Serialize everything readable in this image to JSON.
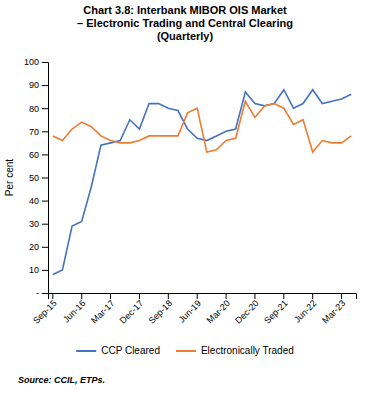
{
  "chart_data": {
    "type": "line",
    "title": "Chart 3.8: Interbank MIBOR OIS Market\n– Electronic Trading and Central Clearing\n(Quarterly)",
    "ylabel": "Per cent",
    "source": "Source: CCIL, ETPs.",
    "categories": [
      "Sep-15",
      null,
      null,
      "Jun-16",
      null,
      null,
      "Mar-17",
      null,
      null,
      "Dec-17",
      null,
      null,
      "Sep-18",
      null,
      null,
      "Jun-19",
      null,
      null,
      "Mar-20",
      null,
      null,
      "Dec-20",
      null,
      null,
      "Sep-21",
      null,
      null,
      "Jun-22",
      null,
      null,
      "Mar-23",
      null
    ],
    "series": [
      {
        "name": "CCP Cleared",
        "color": "#4472C4",
        "values": [
          8,
          10,
          29,
          31,
          46,
          64,
          65,
          66,
          75,
          71,
          82,
          82,
          80,
          79,
          71,
          67,
          66,
          68,
          70,
          71,
          87,
          82,
          81,
          82,
          88,
          80,
          82,
          88,
          82,
          83,
          84,
          86
        ]
      },
      {
        "name": "Electronically Traded",
        "color": "#ED7D31",
        "values": [
          68,
          66,
          71,
          74,
          72,
          68,
          66,
          65,
          65,
          66,
          68,
          68,
          68,
          68,
          78,
          80,
          61,
          62,
          66,
          67,
          83,
          76,
          81,
          82,
          80,
          73,
          75,
          61,
          66,
          65,
          65,
          68
        ]
      }
    ],
    "ylim": [
      0,
      100
    ],
    "yticks": [
      {
        "value": 0,
        "label": "-"
      },
      10,
      20,
      30,
      40,
      50,
      60,
      70,
      80,
      90,
      100
    ],
    "grid": false,
    "legend": "bottom"
  }
}
